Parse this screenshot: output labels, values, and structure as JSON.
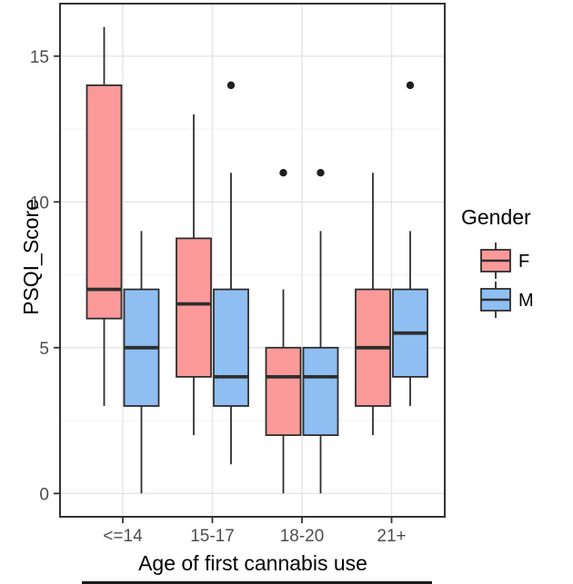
{
  "chart_data": {
    "type": "boxplot",
    "title": "",
    "xlabel": "Age of first cannabis use",
    "ylabel": "PSQI_Score",
    "categories": [
      "<=14",
      "15-17",
      "18-20",
      "21+"
    ],
    "y_ticks": [
      0,
      5,
      10,
      15
    ],
    "y_minor_ticks": [
      2.5,
      7.5,
      12.5
    ],
    "ylim": [
      -0.8,
      16.8
    ],
    "grid": true,
    "legend": {
      "title": "Gender",
      "position": "right",
      "entries": [
        {
          "label": "F",
          "fill": "#FB9A99"
        },
        {
          "label": "M",
          "fill": "#8FBEF2"
        }
      ]
    },
    "series": [
      {
        "name": "F",
        "fill": "#FB9A99",
        "boxes": [
          {
            "category": "<=14",
            "whisker_low": 3,
            "q1": 6,
            "median": 7,
            "q3": 14,
            "whisker_high": 16,
            "outliers": []
          },
          {
            "category": "15-17",
            "whisker_low": 2,
            "q1": 4,
            "median": 6.5,
            "q3": 8.75,
            "whisker_high": 13,
            "outliers": []
          },
          {
            "category": "18-20",
            "whisker_low": 0,
            "q1": 2,
            "median": 4,
            "q3": 5,
            "whisker_high": 7,
            "outliers": [
              11
            ]
          },
          {
            "category": "21+",
            "whisker_low": 2,
            "q1": 3,
            "median": 5,
            "q3": 7,
            "whisker_high": 11,
            "outliers": []
          }
        ]
      },
      {
        "name": "M",
        "fill": "#8FBEF2",
        "boxes": [
          {
            "category": "<=14",
            "whisker_low": 0,
            "q1": 3,
            "median": 5,
            "q3": 7,
            "whisker_high": 9,
            "outliers": []
          },
          {
            "category": "15-17",
            "whisker_low": 1,
            "q1": 3,
            "median": 4,
            "q3": 7,
            "whisker_high": 11,
            "outliers": [
              14
            ]
          },
          {
            "category": "18-20",
            "whisker_low": 0,
            "q1": 2,
            "median": 4,
            "q3": 5,
            "whisker_high": 9,
            "outliers": [
              11
            ]
          },
          {
            "category": "21+",
            "whisker_low": 3,
            "q1": 4,
            "median": 5.5,
            "q3": 7,
            "whisker_high": 9,
            "outliers": [
              14
            ]
          }
        ]
      }
    ]
  },
  "colors": {
    "box_outline": "#2e2e2e",
    "median_line": "#2e2e2e",
    "outlier": "#1f1f1f",
    "panel_border": "#333333",
    "grid_major": "#e4e4e4",
    "grid_minor": "#f1f1f1",
    "tick_mark": "#333333",
    "tick_label": "#4d4d4d",
    "axis_title": "#000000"
  }
}
